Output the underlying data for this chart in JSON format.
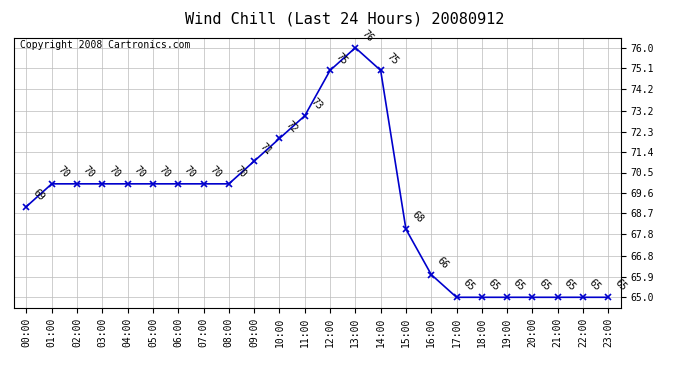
{
  "title": "Wind Chill (Last 24 Hours) 20080912",
  "copyright_text": "Copyright 2008 Cartronics.com",
  "hours": [
    0,
    1,
    2,
    3,
    4,
    5,
    6,
    7,
    8,
    9,
    10,
    11,
    12,
    13,
    14,
    15,
    16,
    17,
    18,
    19,
    20,
    21,
    22,
    23
  ],
  "x_labels": [
    "00:00",
    "01:00",
    "02:00",
    "03:00",
    "04:00",
    "05:00",
    "06:00",
    "07:00",
    "08:00",
    "09:00",
    "10:00",
    "11:00",
    "12:00",
    "13:00",
    "14:00",
    "15:00",
    "16:00",
    "17:00",
    "18:00",
    "19:00",
    "20:00",
    "21:00",
    "22:00",
    "23:00"
  ],
  "values": [
    69,
    70,
    70,
    70,
    70,
    70,
    70,
    70,
    70,
    71,
    72,
    73,
    75,
    76,
    75,
    68,
    66,
    65,
    65,
    65,
    65,
    65,
    65,
    65
  ],
  "ylim_min": 64.55,
  "ylim_max": 76.45,
  "yticks": [
    65.0,
    65.9,
    66.8,
    67.8,
    68.7,
    69.6,
    70.5,
    71.4,
    72.3,
    73.2,
    74.2,
    75.1,
    76.0
  ],
  "line_color": "#0000cc",
  "marker_color": "#0000cc",
  "background_color": "#ffffff",
  "grid_color": "#bbbbbb",
  "title_fontsize": 11,
  "tick_fontsize": 7,
  "annotation_fontsize": 7,
  "copyright_fontsize": 7
}
